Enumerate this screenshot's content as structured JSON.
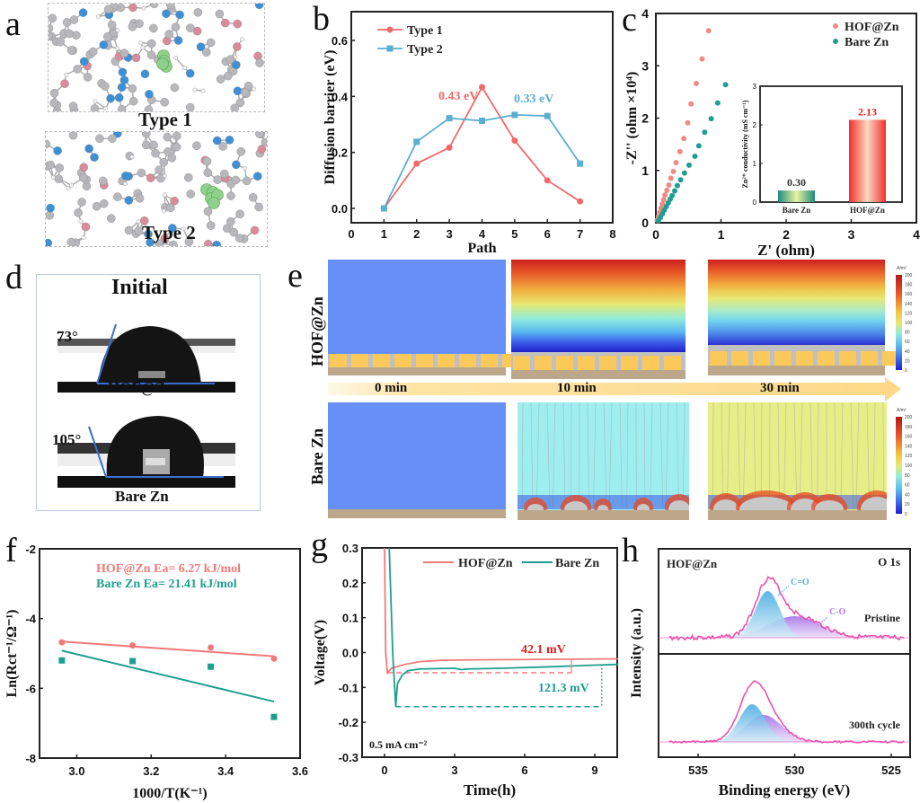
{
  "figure": {
    "panel_labels": [
      "a",
      "b",
      "c",
      "d",
      "e",
      "f",
      "g",
      "h"
    ]
  },
  "panel_a": {
    "captions": [
      "Type 1",
      "Type 2"
    ],
    "atom_colors": {
      "carbon": "#b8b8bc",
      "nitrogen": "#3d8fd6",
      "oxygen": "#d98a9c",
      "hydrogen": "#f2f2f2",
      "zinc": "#8fd18a"
    }
  },
  "panel_d": {
    "title": "Initial",
    "samples": [
      {
        "name": "HOF@Zn",
        "angle": "73°"
      },
      {
        "name": "Bare Zn",
        "angle": "105°"
      }
    ]
  },
  "panel_e": {
    "row_labels": [
      "HOF@Zn",
      "Bare Zn"
    ],
    "time_labels": [
      "0 min",
      "10 min",
      "30 min"
    ],
    "colorbar": {
      "unit": "A/m²",
      "ticks": [
        "200",
        "180",
        "160",
        "140",
        "120",
        "100",
        "80",
        "60",
        "40",
        "20",
        "0"
      ]
    }
  },
  "chart_data": [
    {
      "id": "b",
      "type": "line",
      "title": "",
      "xlabel": "Path",
      "ylabel": "Diffusion barrier (eV)",
      "xlim": [
        0,
        8
      ],
      "ylim": [
        -0.05,
        0.7
      ],
      "xticks": [
        "0",
        "1",
        "2",
        "3",
        "4",
        "5",
        "6",
        "7",
        "8"
      ],
      "yticks": [
        "0.0",
        "0.2",
        "0.4",
        "0.6"
      ],
      "legend": "top-left",
      "x": [
        1,
        2,
        3,
        4,
        5,
        6,
        7
      ],
      "series": [
        {
          "name": "Type 1",
          "color": "#f06a6a",
          "marker": "circle",
          "values": [
            0.0,
            0.16,
            0.217,
            0.433,
            0.242,
            0.1,
            0.025
          ]
        },
        {
          "name": "Type 2",
          "color": "#5aaed0",
          "marker": "square",
          "values": [
            0.0,
            0.238,
            0.322,
            0.313,
            0.334,
            0.33,
            0.16
          ]
        }
      ],
      "annotations": [
        {
          "text": "0.43 eV",
          "color": "#f06a6a"
        },
        {
          "text": "0.33 eV",
          "color": "#5aaed0"
        }
      ]
    },
    {
      "id": "c",
      "type": "scatter",
      "xlabel": "Z' (ohm)",
      "ylabel": "-Z'' (ohm ×10⁴)",
      "xlim": [
        0,
        4
      ],
      "ylim": [
        0,
        4
      ],
      "xticks": [
        "0",
        "1",
        "2",
        "3",
        "4"
      ],
      "yticks": [
        "0",
        "1",
        "2",
        "3",
        "4"
      ],
      "legend": "top-right",
      "series": [
        {
          "name": "HOF@Zn",
          "color": "#f08a84",
          "points": [
            [
              0.02,
              0.05
            ],
            [
              0.04,
              0.12
            ],
            [
              0.06,
              0.2
            ],
            [
              0.08,
              0.28
            ],
            [
              0.1,
              0.36
            ],
            [
              0.12,
              0.44
            ],
            [
              0.14,
              0.53
            ],
            [
              0.17,
              0.62
            ],
            [
              0.2,
              0.72
            ],
            [
              0.23,
              0.85
            ],
            [
              0.27,
              0.98
            ],
            [
              0.31,
              1.15
            ],
            [
              0.37,
              1.36
            ],
            [
              0.43,
              1.61
            ],
            [
              0.49,
              1.91
            ],
            [
              0.54,
              2.27
            ],
            [
              0.62,
              2.66
            ],
            [
              0.71,
              3.13
            ],
            [
              0.81,
              3.67
            ]
          ]
        },
        {
          "name": "Bare Zn",
          "color": "#1e9e90",
          "points": [
            [
              0.04,
              0.04
            ],
            [
              0.07,
              0.1
            ],
            [
              0.1,
              0.17
            ],
            [
              0.13,
              0.24
            ],
            [
              0.16,
              0.31
            ],
            [
              0.19,
              0.38
            ],
            [
              0.22,
              0.45
            ],
            [
              0.25,
              0.52
            ],
            [
              0.29,
              0.61
            ],
            [
              0.33,
              0.71
            ],
            [
              0.38,
              0.82
            ],
            [
              0.44,
              0.95
            ],
            [
              0.51,
              1.1
            ],
            [
              0.6,
              1.27
            ],
            [
              0.66,
              1.47
            ],
            [
              0.75,
              1.73
            ],
            [
              0.85,
              1.99
            ],
            [
              0.95,
              2.29
            ],
            [
              1.07,
              2.64
            ]
          ]
        }
      ],
      "inset": {
        "type": "bar",
        "ylabel": "Zn²⁺ conductivity (mS cm⁻¹)",
        "ylim": [
          0,
          3
        ],
        "yticks": [
          "0",
          "1",
          "2",
          "3"
        ],
        "categories": [
          "Bare Zn",
          "HOF@Zn"
        ],
        "values": [
          0.3,
          2.13
        ],
        "value_labels": [
          "0.30",
          "2.13"
        ],
        "value_label_colors": [
          "#333333",
          "#e02020"
        ]
      }
    },
    {
      "id": "f",
      "type": "scatter",
      "xlabel": "1000/T(K⁻¹)",
      "ylabel": "Ln(Rct⁻¹/Ω⁻¹)",
      "xlim": [
        2.9,
        3.6
      ],
      "ylim": [
        -8,
        -2
      ],
      "xticks": [
        "3.0",
        "3.2",
        "3.4",
        "3.6"
      ],
      "yticks": [
        "-2",
        "-4",
        "-6",
        "-8"
      ],
      "annotations": [
        {
          "text": "HOF@Zn Ea= 6.27 kJ/mol",
          "color": "#f07a7a"
        },
        {
          "text": "Bare Zn    Ea= 21.41 kJ/mol",
          "color": "#1e9e90"
        }
      ],
      "series": [
        {
          "name": "HOF@Zn",
          "color": "#f07a7a",
          "marker": "circle",
          "x": [
            2.96,
            3.15,
            3.36,
            3.53
          ],
          "values": [
            -4.68,
            -4.77,
            -4.83,
            -5.15
          ],
          "fit": [
            [
              2.96,
              -4.66
            ],
            [
              3.53,
              -5.08
            ]
          ]
        },
        {
          "name": "Bare Zn",
          "color": "#1e9e90",
          "marker": "square",
          "x": [
            2.96,
            3.15,
            3.36,
            3.53
          ],
          "values": [
            -5.2,
            -5.22,
            -5.38,
            -6.82
          ],
          "fit": [
            [
              2.96,
              -4.92
            ],
            [
              3.53,
              -6.38
            ]
          ]
        }
      ]
    },
    {
      "id": "g",
      "type": "line",
      "xlabel": "Time(h)",
      "ylabel": "Voltage(V)",
      "xlim": [
        -0.6,
        10
      ],
      "ylim": [
        -0.3,
        0.3
      ],
      "xticks": [
        "0",
        "3",
        "6",
        "9"
      ],
      "yticks": [
        "0.3",
        "0.2",
        "0.1",
        "0.0",
        "-0.1",
        "-0.2",
        "-0.3"
      ],
      "legend": "top-right",
      "annotations": [
        {
          "text": "42.1 mV",
          "color": "#e02020"
        },
        {
          "text": "121.3 mV",
          "color": "#1e9e90"
        },
        {
          "text": "0.5 mA cm⁻²",
          "color": "#111111"
        }
      ],
      "series": [
        {
          "name": "HOF@Zn",
          "color": "#f07a7a",
          "x": [
            0.0,
            0.05,
            0.12,
            0.3,
            0.8,
            1.5,
            2.5,
            4,
            6,
            8,
            10
          ],
          "values": [
            0.3,
            0.0,
            -0.058,
            -0.045,
            -0.035,
            -0.026,
            -0.022,
            -0.021,
            -0.02,
            -0.019,
            -0.018
          ]
        },
        {
          "name": "Bare Zn",
          "color": "#1e9e90",
          "x": [
            0.2,
            0.35,
            0.48,
            0.55,
            0.75,
            1.0,
            1.5,
            3.0,
            3.3,
            3.6,
            5,
            7,
            9,
            10
          ],
          "values": [
            0.3,
            0.0,
            -0.155,
            -0.09,
            -0.065,
            -0.052,
            -0.047,
            -0.045,
            -0.049,
            -0.047,
            -0.045,
            -0.041,
            -0.036,
            -0.034
          ]
        }
      ],
      "reference_lines": [
        {
          "color": "#f07a7a",
          "y": -0.058,
          "x": [
            0.12,
            8
          ]
        },
        {
          "color": "#1e9e90",
          "y": -0.155,
          "x": [
            0.48,
            9.3
          ]
        }
      ]
    },
    {
      "id": "h",
      "type": "line",
      "xlabel": "Binding energy (eV)",
      "ylabel": "Intensity (a.u.)",
      "xlim": [
        537,
        524
      ],
      "xticks": [
        "535",
        "530",
        "525"
      ],
      "sample_label": "HOF@Zn",
      "region_label": "O 1s",
      "subpanels": [
        {
          "label": "Pristine",
          "peaks": [
            {
              "name": "C=O",
              "center": 531.4,
              "color": "#4fb0e0"
            },
            {
              "name": "C-O",
              "center": 530.0,
              "color": "#b07ae8"
            }
          ]
        },
        {
          "label": "300th cycle",
          "peaks": [
            {
              "name": "C=O",
              "center": 532.2,
              "color": "#4fb0e0"
            },
            {
              "name": "C-O",
              "center": 531.6,
              "color": "#b07ae8"
            }
          ]
        }
      ],
      "data_color": "#f050b0"
    }
  ]
}
